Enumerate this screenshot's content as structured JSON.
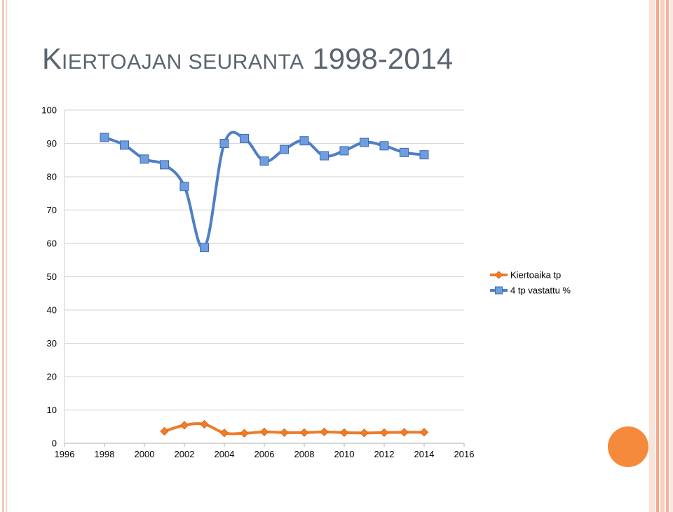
{
  "slide": {
    "title_first": "K",
    "title_smallcaps_1": "IERTOAJAN SEURANTA",
    "title_tail": "1998-2014"
  },
  "colors": {
    "series_orange": "#f07c28",
    "series_blue": "#4f7fc7",
    "marker_blue_fill": "#6f9ee0",
    "grid": "#d9d9d9",
    "accent_circle": "#f58a3c"
  },
  "chart_data": {
    "type": "line",
    "xlim": [
      1996,
      2016
    ],
    "ylim": [
      0,
      100
    ],
    "x_ticks": [
      "1996",
      "1998",
      "2000",
      "2002",
      "2004",
      "2006",
      "2008",
      "2010",
      "2012",
      "2014",
      "2016"
    ],
    "y_ticks": [
      "0",
      "10",
      "20",
      "30",
      "40",
      "50",
      "60",
      "70",
      "80",
      "90",
      "100"
    ],
    "grid": true,
    "legend_position": "right",
    "smooth": true,
    "series": [
      {
        "name": "Kiertoaika tp",
        "marker": "diamond",
        "x": [
          2001,
          2002,
          2003,
          2004,
          2005,
          2006,
          2007,
          2008,
          2009,
          2010,
          2011,
          2012,
          2013,
          2014
        ],
        "y": [
          3.6,
          5.4,
          5.7,
          3.1,
          3.0,
          3.4,
          3.2,
          3.2,
          3.4,
          3.2,
          3.1,
          3.2,
          3.3,
          3.3
        ]
      },
      {
        "name": "4 tp vastattu %",
        "marker": "square",
        "x": [
          1998,
          1999,
          2000,
          2001,
          2002,
          2003,
          2004,
          2005,
          2006,
          2007,
          2008,
          2009,
          2010,
          2011,
          2012,
          2013,
          2014
        ],
        "y": [
          91.8,
          89.5,
          85.3,
          83.6,
          77.1,
          58.8,
          90.0,
          91.5,
          84.7,
          88.2,
          90.8,
          86.3,
          87.8,
          90.3,
          89.3,
          87.3,
          86.6
        ]
      }
    ]
  }
}
